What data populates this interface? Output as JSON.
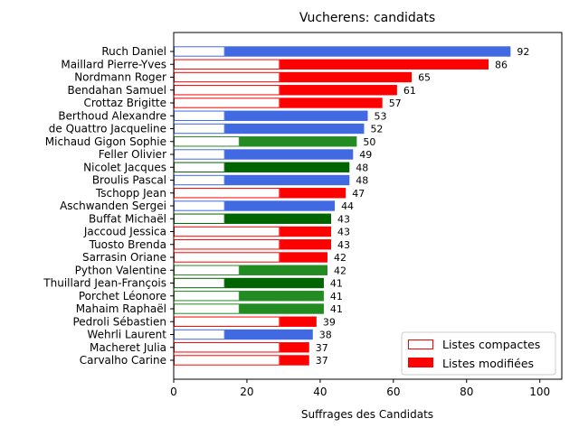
{
  "chart_data": {
    "type": "bar",
    "orientation": "horizontal",
    "stacked": true,
    "title": "Vucherens: candidats",
    "xlabel": "Suffrages des Candidats",
    "ylabel": "",
    "xlim": [
      0,
      106
    ],
    "xticks": [
      0,
      20,
      40,
      60,
      80,
      100
    ],
    "grid": false,
    "legend": {
      "position": "bottom-right",
      "entries": [
        "Listes compactes",
        "Listes modifiées"
      ]
    },
    "colors": {
      "blue": "#4169e1",
      "red": "#ff0000",
      "green": "#228b22",
      "darkgreen": "#006400"
    },
    "series": [
      {
        "name": "Listes compactes",
        "style": "outline"
      },
      {
        "name": "Listes modifiées",
        "style": "filled"
      }
    ],
    "bars": [
      {
        "name": "Ruch Daniel",
        "compact": 14,
        "total": 92,
        "color": "blue"
      },
      {
        "name": "Maillard Pierre-Yves",
        "compact": 29,
        "total": 86,
        "color": "red"
      },
      {
        "name": "Nordmann Roger",
        "compact": 29,
        "total": 65,
        "color": "red"
      },
      {
        "name": "Bendahan Samuel",
        "compact": 29,
        "total": 61,
        "color": "red"
      },
      {
        "name": "Crottaz Brigitte",
        "compact": 29,
        "total": 57,
        "color": "red"
      },
      {
        "name": "Berthoud Alexandre",
        "compact": 14,
        "total": 53,
        "color": "blue"
      },
      {
        "name": "de Quattro Jacqueline",
        "compact": 14,
        "total": 52,
        "color": "blue"
      },
      {
        "name": "Michaud Gigon Sophie",
        "compact": 18,
        "total": 50,
        "color": "green"
      },
      {
        "name": "Feller Olivier",
        "compact": 14,
        "total": 49,
        "color": "blue"
      },
      {
        "name": "Nicolet Jacques",
        "compact": 14,
        "total": 48,
        "color": "darkgreen"
      },
      {
        "name": "Broulis Pascal",
        "compact": 14,
        "total": 48,
        "color": "blue"
      },
      {
        "name": "Tschopp Jean",
        "compact": 29,
        "total": 47,
        "color": "red"
      },
      {
        "name": "Aschwanden Sergei",
        "compact": 14,
        "total": 44,
        "color": "blue"
      },
      {
        "name": "Buffat Michaël",
        "compact": 14,
        "total": 43,
        "color": "darkgreen"
      },
      {
        "name": "Jaccoud Jessica",
        "compact": 29,
        "total": 43,
        "color": "red"
      },
      {
        "name": "Tuosto Brenda",
        "compact": 29,
        "total": 43,
        "color": "red"
      },
      {
        "name": "Sarrasin Oriane",
        "compact": 29,
        "total": 42,
        "color": "red"
      },
      {
        "name": "Python Valentine",
        "compact": 18,
        "total": 42,
        "color": "green"
      },
      {
        "name": "Thuillard Jean-François",
        "compact": 14,
        "total": 41,
        "color": "darkgreen"
      },
      {
        "name": "Porchet Léonore",
        "compact": 18,
        "total": 41,
        "color": "green"
      },
      {
        "name": "Mahaim Raphaël",
        "compact": 18,
        "total": 41,
        "color": "green"
      },
      {
        "name": "Pedroli Sébastien",
        "compact": 29,
        "total": 39,
        "color": "red"
      },
      {
        "name": "Wehrli Laurent",
        "compact": 14,
        "total": 38,
        "color": "blue"
      },
      {
        "name": "Macheret Julia",
        "compact": 29,
        "total": 37,
        "color": "red"
      },
      {
        "name": "Carvalho Carine",
        "compact": 29,
        "total": 37,
        "color": "red"
      }
    ]
  }
}
